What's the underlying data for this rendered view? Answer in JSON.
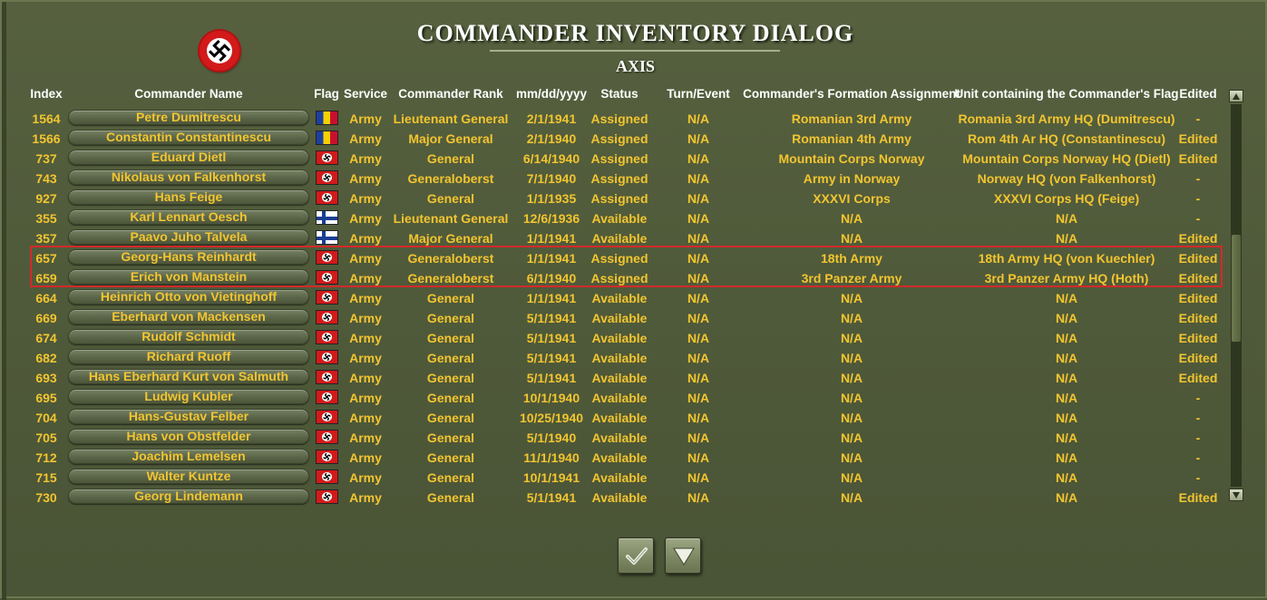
{
  "dialog": {
    "title": "COMMANDER INVENTORY DIALOG",
    "side": "AXIS",
    "nation_icon": "german-swastika-roundel-icon"
  },
  "columns": {
    "index": "Index",
    "name": "Commander Name",
    "flag": "Flag",
    "service": "Service",
    "rank": "Commander Rank",
    "date": "mm/dd/yyyy",
    "status": "Status",
    "turn": "Turn/Event",
    "formation": "Commander's Formation Assignment",
    "unit": "Unit containing the Commander's Flag",
    "edited": "Edited"
  },
  "rows": [
    {
      "index": "1564",
      "name": "Petre Dumitrescu",
      "flag": "romania-flag-icon",
      "service": "Army",
      "rank": "Lieutenant General",
      "date": "2/1/1941",
      "status": "Assigned",
      "turn": "N/A",
      "formation": "Romanian 3rd Army",
      "unit": "Romania 3rd Army HQ (Dumitrescu)",
      "edited": "-"
    },
    {
      "index": "1566",
      "name": "Constantin Constantinescu",
      "flag": "romania-flag-icon",
      "service": "Army",
      "rank": "Major General",
      "date": "2/1/1940",
      "status": "Assigned",
      "turn": "N/A",
      "formation": "Romanian 4th Army",
      "unit": "Rom 4th Ar HQ (Constantinescu)",
      "edited": "Edited"
    },
    {
      "index": "737",
      "name": "Eduard Dietl",
      "flag": "germany-flag-icon",
      "service": "Army",
      "rank": "General",
      "date": "6/14/1940",
      "status": "Assigned",
      "turn": "N/A",
      "formation": "Mountain Corps Norway",
      "unit": "Mountain Corps Norway HQ (Dietl)",
      "edited": "Edited"
    },
    {
      "index": "743",
      "name": "Nikolaus von Falkenhorst",
      "flag": "germany-flag-icon",
      "service": "Army",
      "rank": "Generaloberst",
      "date": "7/1/1940",
      "status": "Assigned",
      "turn": "N/A",
      "formation": "Army in Norway",
      "unit": "Norway HQ (von Falkenhorst)",
      "edited": "-"
    },
    {
      "index": "927",
      "name": "Hans Feige",
      "flag": "germany-flag-icon",
      "service": "Army",
      "rank": "General",
      "date": "1/1/1935",
      "status": "Assigned",
      "turn": "N/A",
      "formation": "XXXVI Corps",
      "unit": "XXXVI Corps HQ (Feige)",
      "edited": "-"
    },
    {
      "index": "355",
      "name": "Karl Lennart Oesch",
      "flag": "finland-flag-icon",
      "service": "Army",
      "rank": "Lieutenant General",
      "date": "12/6/1936",
      "status": "Available",
      "turn": "N/A",
      "formation": "N/A",
      "unit": "N/A",
      "edited": "-"
    },
    {
      "index": "357",
      "name": "Paavo Juho Talvela",
      "flag": "finland-flag-icon",
      "service": "Army",
      "rank": "Major General",
      "date": "1/1/1941",
      "status": "Available",
      "turn": "N/A",
      "formation": "N/A",
      "unit": "N/A",
      "edited": "Edited"
    },
    {
      "index": "657",
      "name": "Georg-Hans Reinhardt",
      "flag": "germany-flag-icon",
      "service": "Army",
      "rank": "Generaloberst",
      "date": "1/1/1941",
      "status": "Assigned",
      "turn": "N/A",
      "formation": "18th Army",
      "unit": "18th Army HQ (von Kuechler)",
      "edited": "Edited"
    },
    {
      "index": "659",
      "name": "Erich von Manstein",
      "flag": "germany-flag-icon",
      "service": "Army",
      "rank": "Generaloberst",
      "date": "6/1/1940",
      "status": "Assigned",
      "turn": "N/A",
      "formation": "3rd Panzer Army",
      "unit": "3rd Panzer Army HQ (Hoth)",
      "edited": "Edited"
    },
    {
      "index": "664",
      "name": "Heinrich Otto von Vietinghoff",
      "flag": "germany-flag-icon",
      "service": "Army",
      "rank": "General",
      "date": "1/1/1941",
      "status": "Available",
      "turn": "N/A",
      "formation": "N/A",
      "unit": "N/A",
      "edited": "Edited"
    },
    {
      "index": "669",
      "name": "Eberhard von Mackensen",
      "flag": "germany-flag-icon",
      "service": "Army",
      "rank": "General",
      "date": "5/1/1941",
      "status": "Available",
      "turn": "N/A",
      "formation": "N/A",
      "unit": "N/A",
      "edited": "Edited"
    },
    {
      "index": "674",
      "name": "Rudolf Schmidt",
      "flag": "germany-flag-icon",
      "service": "Army",
      "rank": "General",
      "date": "5/1/1941",
      "status": "Available",
      "turn": "N/A",
      "formation": "N/A",
      "unit": "N/A",
      "edited": "Edited"
    },
    {
      "index": "682",
      "name": "Richard Ruoff",
      "flag": "germany-flag-icon",
      "service": "Army",
      "rank": "General",
      "date": "5/1/1941",
      "status": "Available",
      "turn": "N/A",
      "formation": "N/A",
      "unit": "N/A",
      "edited": "Edited"
    },
    {
      "index": "693",
      "name": "Hans Eberhard Kurt von Salmuth",
      "flag": "germany-flag-icon",
      "service": "Army",
      "rank": "General",
      "date": "5/1/1941",
      "status": "Available",
      "turn": "N/A",
      "formation": "N/A",
      "unit": "N/A",
      "edited": "Edited"
    },
    {
      "index": "695",
      "name": "Ludwig Kubler",
      "flag": "germany-flag-icon",
      "service": "Army",
      "rank": "General",
      "date": "10/1/1940",
      "status": "Available",
      "turn": "N/A",
      "formation": "N/A",
      "unit": "N/A",
      "edited": "-"
    },
    {
      "index": "704",
      "name": "Hans-Gustav Felber",
      "flag": "germany-flag-icon",
      "service": "Army",
      "rank": "General",
      "date": "10/25/1940",
      "status": "Available",
      "turn": "N/A",
      "formation": "N/A",
      "unit": "N/A",
      "edited": "-"
    },
    {
      "index": "705",
      "name": "Hans von Obstfelder",
      "flag": "germany-flag-icon",
      "service": "Army",
      "rank": "General",
      "date": "5/1/1940",
      "status": "Available",
      "turn": "N/A",
      "formation": "N/A",
      "unit": "N/A",
      "edited": "-"
    },
    {
      "index": "712",
      "name": "Joachim Lemelsen",
      "flag": "germany-flag-icon",
      "service": "Army",
      "rank": "General",
      "date": "11/1/1940",
      "status": "Available",
      "turn": "N/A",
      "formation": "N/A",
      "unit": "N/A",
      "edited": "-"
    },
    {
      "index": "715",
      "name": "Walter Kuntze",
      "flag": "germany-flag-icon",
      "service": "Army",
      "rank": "General",
      "date": "10/1/1941",
      "status": "Available",
      "turn": "N/A",
      "formation": "N/A",
      "unit": "N/A",
      "edited": "-"
    },
    {
      "index": "730",
      "name": "Georg Lindemann",
      "flag": "germany-flag-icon",
      "service": "Army",
      "rank": "General",
      "date": "5/1/1941",
      "status": "Available",
      "turn": "N/A",
      "formation": "N/A",
      "unit": "N/A",
      "edited": "Edited"
    }
  ],
  "highlighted_rows": [
    7,
    8
  ],
  "scrollbar": {
    "up_icon": "scroll-up-arrow-icon",
    "down_icon": "scroll-down-arrow-icon",
    "position": 0.35
  },
  "buttons": {
    "ok_icon": "checkmark-icon",
    "next_icon": "down-triangle-icon"
  },
  "colors": {
    "text": "#f2c530",
    "header": "#ffffff",
    "background": "#505a3b",
    "highlight": "#d22a2a"
  }
}
